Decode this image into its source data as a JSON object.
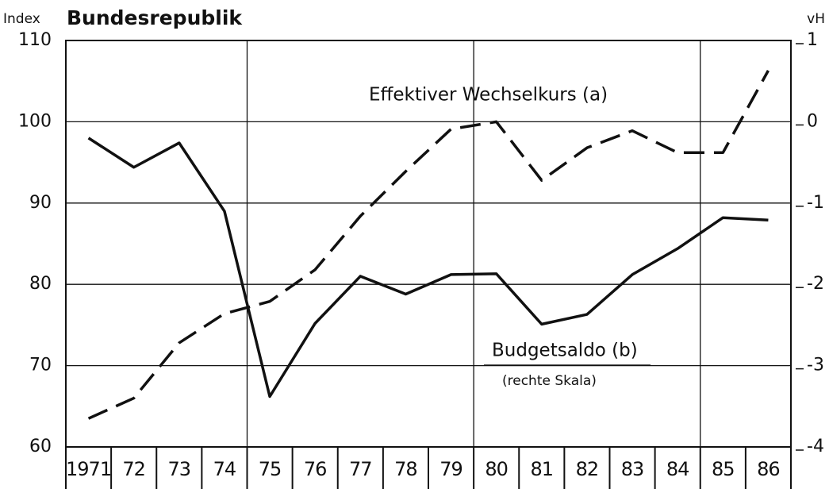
{
  "chart_data": {
    "type": "line",
    "title": "Bundesrepublik",
    "y_label": "Index",
    "y2_label": "vH",
    "annotations": [
      "Effektiver Wechselkurs (a)",
      "Budgetsaldo (b)",
      "(rechte Skala)"
    ],
    "categories": [
      "1971",
      "72",
      "73",
      "74",
      "75",
      "76",
      "77",
      "78",
      "79",
      "80",
      "81",
      "82",
      "83",
      "84",
      "85",
      "86"
    ],
    "series": [
      {
        "name": "Effektiver Wechselkurs (a)",
        "color": "#111111",
        "style": "dashed",
        "axis": "y",
        "values": [
          63.5,
          66.0,
          72.8,
          76.4,
          77.9,
          81.8,
          88.4,
          93.9,
          99.1,
          100.0,
          92.8,
          96.8,
          98.9,
          96.2,
          96.2,
          106.3
        ]
      },
      {
        "name": "Budgetsaldo (b)",
        "color": "#111111",
        "style": "solid",
        "axis": "y2",
        "values": [
          -0.2,
          -0.56,
          -0.26,
          -1.1,
          -3.38,
          -2.48,
          -1.9,
          -2.12,
          -1.88,
          -1.87,
          -2.49,
          -2.37,
          -1.88,
          -1.56,
          -1.18,
          -1.21
        ]
      }
    ],
    "ylim": [
      60,
      110
    ],
    "yticks": [
      60,
      70,
      80,
      90,
      100,
      110
    ],
    "y2lim": [
      -4,
      1
    ],
    "y2ticks": [
      -4,
      -3,
      -2,
      -1,
      0,
      1
    ],
    "grid": true
  }
}
